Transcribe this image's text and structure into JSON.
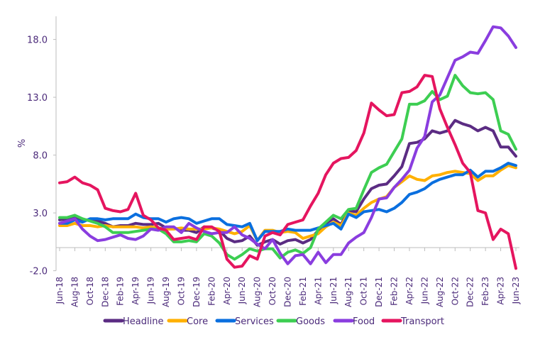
{
  "chart_data": {
    "type": "line",
    "title": "",
    "xlabel": "",
    "ylabel": "%",
    "ylim": [
      -2,
      20
    ],
    "y_ticks": [
      "-2.0",
      "3.0",
      "8.0",
      "13.0",
      "18.0"
    ],
    "y_tick_values": [
      -2,
      3,
      8,
      13,
      18
    ],
    "x_start": "Jun-18",
    "x_end": "Jun-23",
    "x_frequency": "monthly",
    "x_tick_labels": [
      "Jun-18",
      "Aug-18",
      "Oct-18",
      "Dec-18",
      "Feb-19",
      "Apr-19",
      "Jun-19",
      "Aug-19",
      "Oct-19",
      "Dec-19",
      "Feb-20",
      "Apr-20",
      "Jun-20",
      "Aug-20",
      "Oct-20",
      "Dec-20",
      "Feb-21",
      "Apr-21",
      "Jun-21",
      "Aug-21",
      "Oct-21",
      "Dec-21",
      "Feb-22",
      "Apr-22",
      "Jun-22",
      "Aug-22",
      "Oct-22",
      "Dec-22",
      "Feb-23",
      "Apr-23",
      "Jun-23"
    ],
    "grid": false,
    "legend_position": "bottom",
    "series": [
      {
        "name": "Headline",
        "color": "#5b2c83",
        "values": [
          2.4,
          2.5,
          2.7,
          2.4,
          2.4,
          2.3,
          2.1,
          1.8,
          1.9,
          1.9,
          2.1,
          2.0,
          2.0,
          2.1,
          1.7,
          1.7,
          1.5,
          1.5,
          1.3,
          1.8,
          1.7,
          1.5,
          0.8,
          0.5,
          0.6,
          1.0,
          0.2,
          0.5,
          0.7,
          0.3,
          0.6,
          0.7,
          0.4,
          0.7,
          1.5,
          2.1,
          2.5,
          2.0,
          3.2,
          3.1,
          4.2,
          5.1,
          5.4,
          5.5,
          6.2,
          7.0,
          9.0,
          9.1,
          9.4,
          10.1,
          9.9,
          10.1,
          11.0,
          10.7,
          10.5,
          10.1,
          10.4,
          10.1,
          8.7,
          8.7,
          7.9
        ]
      },
      {
        "name": "Core",
        "color": "#ffb000",
        "values": [
          1.9,
          1.9,
          2.1,
          1.9,
          1.9,
          1.8,
          1.9,
          1.8,
          1.8,
          1.8,
          1.8,
          1.7,
          1.8,
          1.7,
          1.6,
          1.6,
          1.7,
          1.6,
          1.6,
          1.6,
          1.7,
          1.6,
          1.4,
          1.2,
          1.4,
          1.9,
          0.6,
          1.5,
          1.5,
          1.3,
          1.4,
          1.3,
          0.8,
          1.0,
          1.2,
          1.8,
          2.2,
          1.9,
          3.0,
          2.8,
          3.4,
          3.9,
          4.2,
          4.4,
          5.2,
          5.7,
          6.2,
          5.9,
          5.8,
          6.2,
          6.3,
          6.5,
          6.6,
          6.5,
          6.4,
          5.8,
          6.2,
          6.2,
          6.7,
          7.1,
          6.9
        ]
      },
      {
        "name": "Services",
        "color": "#0a6fdf",
        "values": [
          2.1,
          2.1,
          2.4,
          2.2,
          2.5,
          2.5,
          2.4,
          2.5,
          2.5,
          2.5,
          2.9,
          2.6,
          2.5,
          2.5,
          2.2,
          2.5,
          2.6,
          2.5,
          2.1,
          2.3,
          2.5,
          2.5,
          2.0,
          1.9,
          1.8,
          2.1,
          0.6,
          1.4,
          1.4,
          1.4,
          1.6,
          1.5,
          1.5,
          1.5,
          1.7,
          1.9,
          2.1,
          1.6,
          2.9,
          2.6,
          3.1,
          3.2,
          3.3,
          3.1,
          3.4,
          3.9,
          4.6,
          4.8,
          5.1,
          5.6,
          5.9,
          6.1,
          6.3,
          6.3,
          6.7,
          6.1,
          6.6,
          6.6,
          6.9,
          7.3,
          7.1
        ]
      },
      {
        "name": "Goods",
        "color": "#3dce52",
        "values": [
          2.6,
          2.6,
          2.8,
          2.5,
          2.3,
          2.1,
          1.8,
          1.3,
          1.3,
          1.3,
          1.4,
          1.5,
          1.6,
          1.6,
          1.2,
          0.5,
          0.5,
          0.6,
          0.5,
          1.2,
          1.0,
          0.4,
          -0.6,
          -1.0,
          -0.6,
          -0.1,
          -0.3,
          -0.1,
          -0.1,
          -0.9,
          -0.4,
          -0.2,
          -0.5,
          0.0,
          1.6,
          2.2,
          2.8,
          2.5,
          3.3,
          3.4,
          5.0,
          6.5,
          6.9,
          7.2,
          8.3,
          9.4,
          12.4,
          12.4,
          12.7,
          13.5,
          12.8,
          13.1,
          14.9,
          14.0,
          13.4,
          13.3,
          13.4,
          12.8,
          10.1,
          9.8,
          8.5
        ]
      },
      {
        "name": "Food",
        "color": "#8a3ddf",
        "values": [
          2.1,
          2.3,
          2.5,
          1.6,
          1.0,
          0.6,
          0.7,
          0.9,
          1.1,
          0.8,
          0.7,
          1.0,
          1.6,
          1.5,
          1.8,
          1.8,
          1.3,
          2.1,
          1.7,
          1.4,
          1.2,
          1.3,
          1.3,
          1.8,
          1.1,
          0.8,
          0.3,
          -0.1,
          0.7,
          -0.5,
          -1.4,
          -0.7,
          -0.6,
          -1.4,
          -0.4,
          -1.3,
          -0.6,
          -0.6,
          0.4,
          0.9,
          1.3,
          2.6,
          4.2,
          4.3,
          5.2,
          5.9,
          6.7,
          8.6,
          9.6,
          12.6,
          13.2,
          14.7,
          16.2,
          16.5,
          16.9,
          16.8,
          17.9,
          19.1,
          19.0,
          18.3,
          17.3
        ]
      },
      {
        "name": "Transport",
        "color": "#e5155f",
        "values": [
          5.6,
          5.7,
          6.1,
          5.6,
          5.4,
          5.0,
          3.4,
          3.2,
          3.1,
          3.3,
          4.7,
          2.8,
          2.4,
          1.7,
          1.5,
          0.7,
          0.8,
          0.9,
          0.7,
          1.8,
          1.8,
          1.4,
          -1.0,
          -1.7,
          -1.6,
          -0.7,
          -1.0,
          1.0,
          1.3,
          1.1,
          2.0,
          2.2,
          2.4,
          3.6,
          4.7,
          6.3,
          7.3,
          7.7,
          7.8,
          8.4,
          9.9,
          12.5,
          11.9,
          11.4,
          11.5,
          13.4,
          13.5,
          13.9,
          14.9,
          14.8,
          12.0,
          10.4,
          8.9,
          7.3,
          6.5,
          3.2,
          3.0,
          0.7,
          1.6,
          1.2,
          -1.8
        ]
      }
    ]
  }
}
